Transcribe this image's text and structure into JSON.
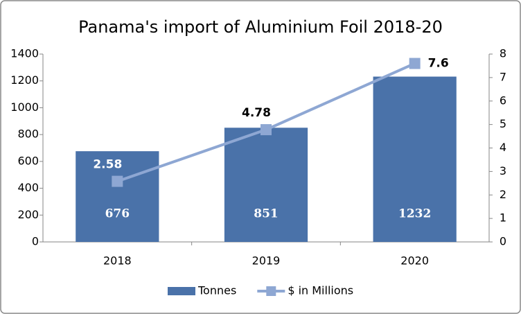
{
  "chart_data": {
    "type": "combo",
    "title": "Panama's import of Aluminium Foil 2018-20",
    "categories": [
      "2018",
      "2019",
      "2020"
    ],
    "series": [
      {
        "name": "Tonnes",
        "type": "bar",
        "color": "#4a72a9",
        "values": [
          676,
          851,
          1232
        ]
      },
      {
        "name": "$ in Millions",
        "type": "line",
        "axis": "y2",
        "color": "#8ea7d3",
        "values": [
          2.58,
          4.78,
          7.6
        ]
      }
    ],
    "ylim": [
      0,
      1400
    ],
    "yticks": [
      0,
      200,
      400,
      600,
      800,
      1000,
      1200,
      1400
    ],
    "y2lim": [
      0,
      8
    ],
    "y2ticks": [
      0,
      1,
      2,
      3,
      4,
      5,
      6,
      7,
      8
    ],
    "grid": false,
    "legend": "bottom"
  }
}
